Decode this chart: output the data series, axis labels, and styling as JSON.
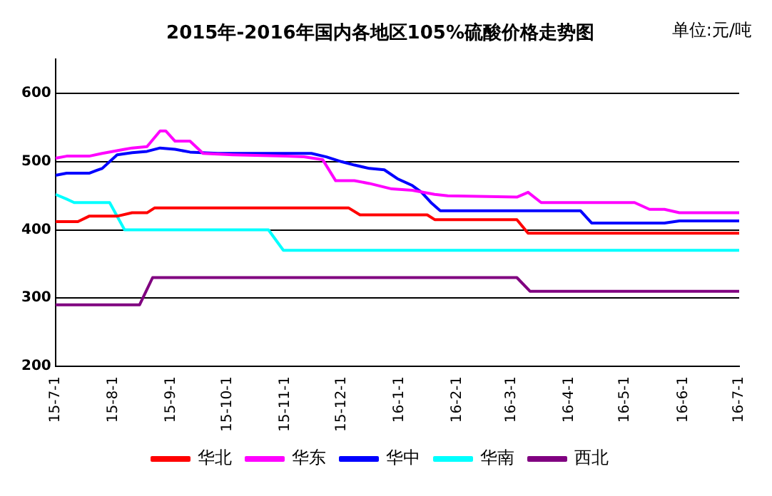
{
  "chart_data": {
    "type": "line",
    "title": "2015年-2016年国内各地区105%硫酸价格走势图",
    "annotations": [
      "单位:元/吨"
    ],
    "xlim": [
      "2015-07-01",
      "2016-07-01"
    ],
    "xticks": [
      {
        "value": "2015-07-01",
        "label": "15-7-1"
      },
      {
        "value": "2015-08-01",
        "label": "15-8-1"
      },
      {
        "value": "2015-09-01",
        "label": "15-9-1"
      },
      {
        "value": "2015-10-01",
        "label": "15-10-1"
      },
      {
        "value": "2015-11-01",
        "label": "15-11-1"
      },
      {
        "value": "2015-12-01",
        "label": "15-12-1"
      },
      {
        "value": "2016-01-01",
        "label": "16-1-1"
      },
      {
        "value": "2016-02-01",
        "label": "16-2-1"
      },
      {
        "value": "2016-03-01",
        "label": "16-3-1"
      },
      {
        "value": "2016-04-01",
        "label": "16-4-1"
      },
      {
        "value": "2016-05-01",
        "label": "16-5-1"
      },
      {
        "value": "2016-06-01",
        "label": "16-6-1"
      },
      {
        "value": "2016-07-01",
        "label": "16-7-1"
      }
    ],
    "ylim": [
      200,
      650
    ],
    "yticks": [
      200,
      300,
      400,
      500,
      600
    ],
    "grid": "y",
    "legend": "bottom",
    "marker": "none",
    "line_style": "solid",
    "series": [
      {
        "name": "华北",
        "color": "#ff0000",
        "x": [
          "2015-07-01",
          "2015-07-13",
          "2015-07-19",
          "2015-08-03",
          "2015-08-11",
          "2015-08-19",
          "2015-08-23",
          "2015-12-05",
          "2015-12-11",
          "2016-01-16",
          "2016-01-20",
          "2016-03-04",
          "2016-03-10",
          "2016-07-01"
        ],
        "values": [
          412,
          412,
          420,
          420,
          425,
          425,
          432,
          432,
          422,
          422,
          415,
          415,
          395,
          395
        ]
      },
      {
        "name": "华东",
        "color": "#ff00ff",
        "x": [
          "2015-07-01",
          "2015-07-07",
          "2015-07-19",
          "2015-07-26",
          "2015-08-07",
          "2015-08-11",
          "2015-08-19",
          "2015-08-26",
          "2015-08-29",
          "2015-09-03",
          "2015-09-11",
          "2015-09-18",
          "2015-10-04",
          "2015-11-01",
          "2015-11-11",
          "2015-11-21",
          "2015-11-28",
          "2015-12-08",
          "2015-12-16",
          "2015-12-28",
          "2016-01-08",
          "2016-01-20",
          "2016-01-27",
          "2016-03-04",
          "2016-03-10",
          "2016-03-17",
          "2016-05-06",
          "2016-05-14",
          "2016-05-22",
          "2016-05-30",
          "2016-07-01"
        ],
        "values": [
          505,
          508,
          508,
          512,
          518,
          520,
          522,
          545,
          545,
          530,
          530,
          512,
          510,
          508,
          507,
          503,
          472,
          472,
          468,
          460,
          458,
          452,
          450,
          448,
          455,
          440,
          440,
          430,
          430,
          425,
          425
        ]
      },
      {
        "name": "华中",
        "color": "#0000ff",
        "x": [
          "2015-07-01",
          "2015-07-07",
          "2015-07-19",
          "2015-07-23",
          "2015-07-26",
          "2015-08-03",
          "2015-08-11",
          "2015-08-19",
          "2015-08-26",
          "2015-09-03",
          "2015-09-11",
          "2015-09-26",
          "2015-11-15",
          "2015-11-23",
          "2015-12-01",
          "2015-12-08",
          "2015-12-16",
          "2015-12-24",
          "2015-12-31",
          "2016-01-08",
          "2016-01-13",
          "2016-01-18",
          "2016-01-23",
          "2016-04-07",
          "2016-04-13",
          "2016-05-22",
          "2016-05-30",
          "2016-07-01"
        ],
        "values": [
          480,
          483,
          483,
          487,
          490,
          510,
          513,
          515,
          520,
          518,
          514,
          512,
          512,
          507,
          500,
          495,
          490,
          488,
          475,
          465,
          455,
          440,
          428,
          428,
          410,
          410,
          413,
          413
        ]
      },
      {
        "name": "华南",
        "color": "#00ffff",
        "x": [
          "2015-07-01",
          "2015-07-07",
          "2015-07-11",
          "2015-07-30",
          "2015-08-07",
          "2015-10-23",
          "2015-10-31",
          "2016-07-01"
        ],
        "values": [
          452,
          445,
          440,
          440,
          400,
          400,
          370,
          370
        ]
      },
      {
        "name": "西北",
        "color": "#800080",
        "x": [
          "2015-07-01",
          "2015-08-15",
          "2015-08-22",
          "2016-03-04",
          "2016-03-11",
          "2016-07-01"
        ],
        "values": [
          290,
          290,
          330,
          330,
          310,
          310
        ]
      }
    ]
  }
}
